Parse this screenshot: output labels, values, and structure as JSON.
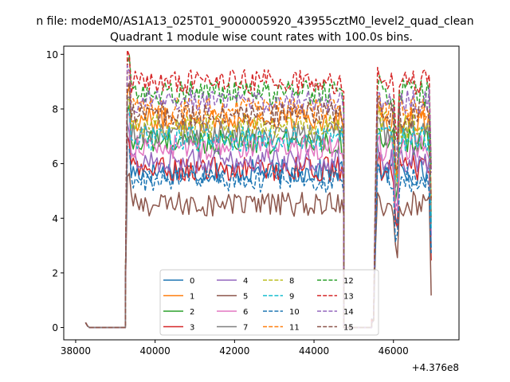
{
  "chart_data": {
    "type": "line",
    "suptitle": "n file: modeM0/AS1A13_025T01_9000005920_43955cztM0_level2_quad_clean",
    "title": "Quadrant 1 module wise count rates with 100.0s bins.",
    "xlabel": "",
    "ylabel": "",
    "x_offset_label": "+4.376e8",
    "xlim": [
      37700,
      47650
    ],
    "ylim": [
      -0.45,
      10.3
    ],
    "x_ticks": [
      38000,
      40000,
      42000,
      44000,
      46000
    ],
    "x_tick_labels": [
      "38000",
      "40000",
      "42000",
      "44000",
      "46000"
    ],
    "y_ticks": [
      0,
      2,
      4,
      6,
      8,
      10
    ],
    "y_tick_labels": [
      "0",
      "2",
      "4",
      "6",
      "8",
      "10"
    ],
    "grid": false,
    "legend_position": "lower center",
    "segments": [
      {
        "start": 38250,
        "end": 39250,
        "profile": "zero"
      },
      {
        "start": 39250,
        "end": 44750,
        "profile": "active"
      },
      {
        "start": 44750,
        "end": 45450,
        "profile": "zero"
      },
      {
        "start": 45450,
        "end": 46950,
        "profile": "active2"
      }
    ],
    "series": [
      {
        "name": "0",
        "level": 5.7,
        "color": "#1f77b4",
        "dash": "solid"
      },
      {
        "name": "1",
        "level": 7.6,
        "color": "#ff7f0e",
        "dash": "solid"
      },
      {
        "name": "2",
        "level": 6.8,
        "color": "#2ca02c",
        "dash": "solid"
      },
      {
        "name": "3",
        "level": 5.8,
        "color": "#d62728",
        "dash": "solid"
      },
      {
        "name": "4",
        "level": 6.1,
        "color": "#9467bd",
        "dash": "solid"
      },
      {
        "name": "5",
        "level": 4.5,
        "color": "#8c564b",
        "dash": "solid"
      },
      {
        "name": "6",
        "level": 6.6,
        "color": "#e377c2",
        "dash": "solid"
      },
      {
        "name": "7",
        "level": 7.1,
        "color": "#7f7f7f",
        "dash": "solid"
      },
      {
        "name": "8",
        "level": 7.4,
        "color": "#bcbd22",
        "dash": "dashed"
      },
      {
        "name": "9",
        "level": 6.9,
        "color": "#17becf",
        "dash": "dashed"
      },
      {
        "name": "10",
        "level": 5.4,
        "color": "#1f77b4",
        "dash": "dashed"
      },
      {
        "name": "11",
        "level": 8.0,
        "color": "#ff7f0e",
        "dash": "dashed"
      },
      {
        "name": "12",
        "level": 8.6,
        "color": "#2ca02c",
        "dash": "dashed"
      },
      {
        "name": "13",
        "level": 9.0,
        "color": "#d62728",
        "dash": "dashed"
      },
      {
        "name": "14",
        "level": 8.3,
        "color": "#9467bd",
        "dash": "dashed"
      },
      {
        "name": "15",
        "level": 7.8,
        "color": "#8c564b",
        "dash": "dashed"
      }
    ]
  }
}
